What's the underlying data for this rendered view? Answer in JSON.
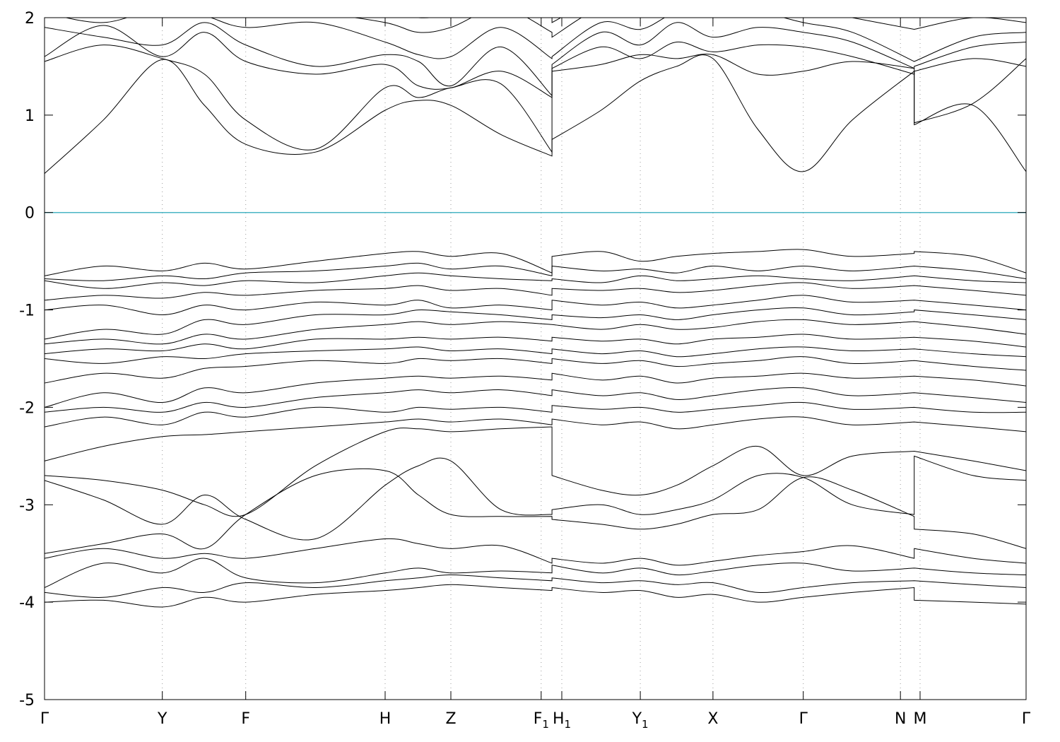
{
  "chart_data": {
    "type": "line",
    "title": "",
    "xlabel": "",
    "ylabel": "",
    "ylim": [
      -5,
      2
    ],
    "y_ticks": [
      2,
      1,
      0,
      -1,
      -2,
      -3,
      -4,
      -5
    ],
    "x_ticks": [
      {
        "pos": 0.0,
        "label": "Γ",
        "sub": ""
      },
      {
        "pos": 0.12,
        "label": "Y",
        "sub": ""
      },
      {
        "pos": 0.205,
        "label": "F",
        "sub": ""
      },
      {
        "pos": 0.347,
        "label": "H",
        "sub": ""
      },
      {
        "pos": 0.414,
        "label": "Z",
        "sub": ""
      },
      {
        "pos": 0.506,
        "label": "F",
        "sub": "1"
      },
      {
        "pos": 0.527,
        "label": "H",
        "sub": "1"
      },
      {
        "pos": 0.607,
        "label": "Y",
        "sub": "1"
      },
      {
        "pos": 0.681,
        "label": "X",
        "sub": ""
      },
      {
        "pos": 0.773,
        "label": "Γ",
        "sub": ""
      },
      {
        "pos": 0.872,
        "label": "N",
        "sub": ""
      },
      {
        "pos": 0.892,
        "label": "M",
        "sub": ""
      },
      {
        "pos": 1.0,
        "label": "Γ",
        "sub": ""
      }
    ],
    "segment_breaks": [
      0.517,
      0.886
    ],
    "fermi_level": 0,
    "fermi_color": "#4ab5c4",
    "band_color": "#000000",
    "grid_color": "#9a9a9a",
    "axis_color": "#000000",
    "legend": "none",
    "grid": "vertical-dotted",
    "x": [
      0.0,
      0.06,
      0.12,
      0.163,
      0.205,
      0.276,
      0.347,
      0.381,
      0.414,
      0.465,
      0.517,
      0.517,
      0.567,
      0.607,
      0.644,
      0.681,
      0.727,
      0.773,
      0.823,
      0.886,
      0.886,
      0.946,
      1.0
    ],
    "bands": [
      [
        0.4,
        0.95,
        1.57,
        1.1,
        0.7,
        0.62,
        1.05,
        1.15,
        1.1,
        0.8,
        0.58,
        0.75,
        1.05,
        1.35,
        1.5,
        1.58,
        0.85,
        0.42,
        0.95,
        1.45,
        0.9,
        1.1,
        0.42
      ],
      [
        1.55,
        1.72,
        1.58,
        1.42,
        0.95,
        0.65,
        1.28,
        1.18,
        1.28,
        1.32,
        0.62,
        1.45,
        1.52,
        1.62,
        1.58,
        1.62,
        1.42,
        1.45,
        1.55,
        1.48,
        0.92,
        1.12,
        1.58
      ],
      [
        1.6,
        1.92,
        1.6,
        1.85,
        1.55,
        1.42,
        1.52,
        1.3,
        1.28,
        1.45,
        1.18,
        1.48,
        1.7,
        1.58,
        1.75,
        1.65,
        1.72,
        1.7,
        1.6,
        1.42,
        1.45,
        1.58,
        1.5
      ],
      [
        1.9,
        1.8,
        1.72,
        1.95,
        1.72,
        1.5,
        1.62,
        1.55,
        1.3,
        1.7,
        1.2,
        1.52,
        1.85,
        1.72,
        1.95,
        1.8,
        1.9,
        1.85,
        1.75,
        1.48,
        1.5,
        1.7,
        1.75
      ],
      [
        2.05,
        1.95,
        2.1,
        2.02,
        1.9,
        1.95,
        1.75,
        1.62,
        1.6,
        1.9,
        1.58,
        1.6,
        1.95,
        1.88,
        2.05,
        2.0,
        2.05,
        1.95,
        1.85,
        1.55,
        1.55,
        1.8,
        1.85
      ],
      [
        2.2,
        2.05,
        2.2,
        2.15,
        2.1,
        2.05,
        1.95,
        1.85,
        1.9,
        2.1,
        1.85,
        1.8,
        2.1,
        2.05,
        2.15,
        2.1,
        2.15,
        2.1,
        2.0,
        1.88,
        1.88,
        2.0,
        1.95
      ],
      [
        2.32,
        2.2,
        2.35,
        2.3,
        2.2,
        2.3,
        2.1,
        2.0,
        2.05,
        2.25,
        2.0,
        1.95,
        2.2,
        2.15,
        2.3,
        2.2,
        2.3,
        2.25,
        2.15,
        2.05,
        2.0,
        2.15,
        2.1
      ],
      [
        -0.65,
        -0.55,
        -0.6,
        -0.52,
        -0.58,
        -0.5,
        -0.42,
        -0.4,
        -0.45,
        -0.42,
        -0.62,
        -0.45,
        -0.4,
        -0.5,
        -0.45,
        -0.42,
        -0.4,
        -0.38,
        -0.45,
        -0.42,
        -0.4,
        -0.45,
        -0.62
      ],
      [
        -0.68,
        -0.7,
        -0.65,
        -0.68,
        -0.62,
        -0.6,
        -0.55,
        -0.52,
        -0.58,
        -0.55,
        -0.65,
        -0.55,
        -0.6,
        -0.58,
        -0.62,
        -0.55,
        -0.6,
        -0.55,
        -0.6,
        -0.55,
        -0.55,
        -0.6,
        -0.68
      ],
      [
        -0.7,
        -0.78,
        -0.72,
        -0.75,
        -0.7,
        -0.72,
        -0.65,
        -0.62,
        -0.65,
        -0.68,
        -0.7,
        -0.68,
        -0.72,
        -0.65,
        -0.7,
        -0.68,
        -0.65,
        -0.68,
        -0.7,
        -0.65,
        -0.65,
        -0.7,
        -0.72
      ],
      [
        -0.9,
        -0.85,
        -0.88,
        -0.82,
        -0.85,
        -0.8,
        -0.78,
        -0.75,
        -0.8,
        -0.78,
        -0.85,
        -0.78,
        -0.8,
        -0.78,
        -0.82,
        -0.8,
        -0.75,
        -0.72,
        -0.78,
        -0.75,
        -0.75,
        -0.8,
        -0.85
      ],
      [
        -1.0,
        -0.95,
        -1.05,
        -0.95,
        -1.0,
        -0.92,
        -0.95,
        -0.9,
        -0.98,
        -0.95,
        -1.0,
        -0.9,
        -0.95,
        -0.92,
        -0.98,
        -0.95,
        -0.9,
        -0.85,
        -0.92,
        -0.9,
        -0.9,
        -0.95,
        -1.0
      ],
      [
        -1.3,
        -1.2,
        -1.25,
        -1.1,
        -1.15,
        -1.05,
        -1.05,
        -1.0,
        -1.02,
        -1.05,
        -1.1,
        -1.05,
        -1.08,
        -1.05,
        -1.1,
        -1.05,
        -1.0,
        -0.98,
        -1.05,
        -1.02,
        -1.0,
        -1.05,
        -1.1
      ],
      [
        -1.35,
        -1.3,
        -1.35,
        -1.25,
        -1.3,
        -1.2,
        -1.15,
        -1.12,
        -1.15,
        -1.12,
        -1.15,
        -1.15,
        -1.2,
        -1.15,
        -1.2,
        -1.18,
        -1.12,
        -1.1,
        -1.15,
        -1.12,
        -1.12,
        -1.18,
        -1.25
      ],
      [
        -1.45,
        -1.4,
        -1.42,
        -1.35,
        -1.4,
        -1.3,
        -1.3,
        -1.28,
        -1.3,
        -1.28,
        -1.32,
        -1.28,
        -1.32,
        -1.3,
        -1.35,
        -1.3,
        -1.28,
        -1.25,
        -1.3,
        -1.28,
        -1.28,
        -1.32,
        -1.38
      ],
      [
        -1.5,
        -1.55,
        -1.48,
        -1.5,
        -1.45,
        -1.42,
        -1.4,
        -1.38,
        -1.42,
        -1.4,
        -1.45,
        -1.4,
        -1.45,
        -1.42,
        -1.48,
        -1.45,
        -1.4,
        -1.38,
        -1.42,
        -1.4,
        -1.4,
        -1.45,
        -1.48
      ],
      [
        -1.75,
        -1.65,
        -1.7,
        -1.6,
        -1.58,
        -1.52,
        -1.55,
        -1.5,
        -1.52,
        -1.5,
        -1.55,
        -1.5,
        -1.55,
        -1.52,
        -1.58,
        -1.55,
        -1.52,
        -1.48,
        -1.55,
        -1.52,
        -1.52,
        -1.58,
        -1.62
      ],
      [
        -2.0,
        -1.85,
        -1.95,
        -1.8,
        -1.85,
        -1.75,
        -1.7,
        -1.68,
        -1.7,
        -1.68,
        -1.72,
        -1.65,
        -1.72,
        -1.68,
        -1.75,
        -1.7,
        -1.68,
        -1.65,
        -1.7,
        -1.68,
        -1.68,
        -1.72,
        -1.78
      ],
      [
        -2.05,
        -2.0,
        -2.05,
        -1.95,
        -2.0,
        -1.9,
        -1.85,
        -1.82,
        -1.85,
        -1.82,
        -1.88,
        -1.82,
        -1.88,
        -1.85,
        -1.92,
        -1.88,
        -1.82,
        -1.8,
        -1.88,
        -1.85,
        -1.85,
        -1.9,
        -1.95
      ],
      [
        -2.2,
        -2.1,
        -2.18,
        -2.05,
        -2.1,
        -2.0,
        -2.05,
        -2.0,
        -2.02,
        -2.0,
        -2.05,
        -1.98,
        -2.02,
        -2.0,
        -2.05,
        -2.02,
        -1.98,
        -1.95,
        -2.02,
        -2.0,
        -2.0,
        -2.05,
        -2.05
      ],
      [
        -2.55,
        -2.4,
        -2.3,
        -2.28,
        -2.25,
        -2.2,
        -2.15,
        -2.12,
        -2.15,
        -2.12,
        -2.18,
        -2.12,
        -2.18,
        -2.15,
        -2.22,
        -2.18,
        -2.12,
        -2.1,
        -2.18,
        -2.15,
        -2.15,
        -2.2,
        -2.25
      ],
      [
        -2.7,
        -2.75,
        -2.85,
        -3.0,
        -3.1,
        -2.6,
        -2.25,
        -2.22,
        -2.25,
        -2.22,
        -2.2,
        -2.7,
        -2.85,
        -2.9,
        -2.8,
        -2.6,
        -2.4,
        -2.7,
        -2.5,
        -2.45,
        -2.45,
        -2.55,
        -2.65
      ],
      [
        -2.75,
        -2.95,
        -3.2,
        -2.9,
        -3.15,
        -3.35,
        -2.8,
        -2.6,
        -2.55,
        -3.05,
        -3.1,
        -3.05,
        -3.0,
        -3.1,
        -3.05,
        -2.95,
        -2.7,
        -2.72,
        -3.0,
        -3.1,
        -2.5,
        -2.7,
        -2.75
      ],
      [
        -3.5,
        -3.4,
        -3.3,
        -3.45,
        -3.1,
        -2.7,
        -2.65,
        -2.9,
        -3.1,
        -3.12,
        -3.12,
        -3.15,
        -3.2,
        -3.25,
        -3.2,
        -3.1,
        -3.05,
        -2.72,
        -2.85,
        -3.12,
        -3.25,
        -3.3,
        -3.45
      ],
      [
        -3.55,
        -3.45,
        -3.55,
        -3.5,
        -3.55,
        -3.45,
        -3.35,
        -3.4,
        -3.45,
        -3.42,
        -3.6,
        -3.55,
        -3.6,
        -3.55,
        -3.62,
        -3.58,
        -3.52,
        -3.48,
        -3.42,
        -3.55,
        -3.45,
        -3.55,
        -3.6
      ],
      [
        -3.85,
        -3.6,
        -3.7,
        -3.55,
        -3.75,
        -3.8,
        -3.7,
        -3.65,
        -3.7,
        -3.68,
        -3.7,
        -3.62,
        -3.7,
        -3.65,
        -3.72,
        -3.68,
        -3.62,
        -3.6,
        -3.68,
        -3.65,
        -3.65,
        -3.7,
        -3.72
      ],
      [
        -3.9,
        -3.95,
        -3.85,
        -3.9,
        -3.8,
        -3.85,
        -3.78,
        -3.75,
        -3.72,
        -3.75,
        -3.78,
        -3.75,
        -3.8,
        -3.78,
        -3.82,
        -3.8,
        -3.9,
        -3.85,
        -3.8,
        -3.78,
        -3.78,
        -3.82,
        -3.85
      ],
      [
        -4.0,
        -3.98,
        -4.05,
        -3.95,
        -4.0,
        -3.92,
        -3.88,
        -3.85,
        -3.82,
        -3.85,
        -3.88,
        -3.85,
        -3.9,
        -3.88,
        -3.95,
        -3.92,
        -4.0,
        -3.95,
        -3.9,
        -3.85,
        -3.98,
        -4.0,
        -4.02
      ]
    ]
  }
}
